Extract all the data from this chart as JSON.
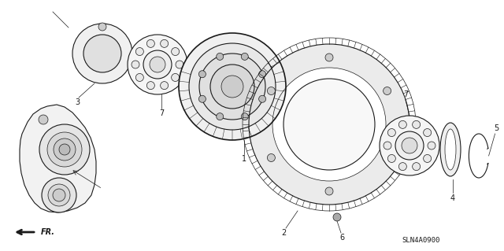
{
  "diagram_code": "SLN4A0900",
  "bg_color": "#ffffff",
  "line_color": "#1a1a1a",
  "figsize": [
    6.4,
    3.19
  ],
  "dpi": 100
}
